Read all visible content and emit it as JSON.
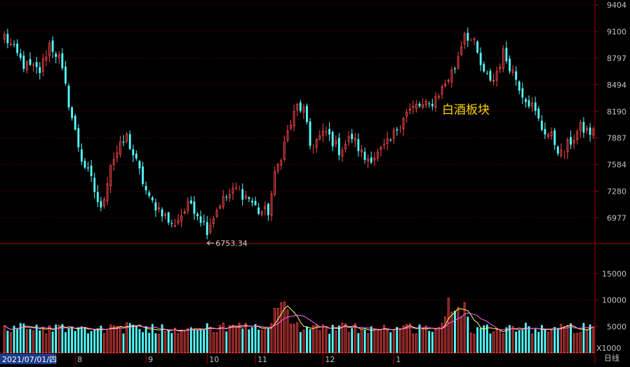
{
  "chart_data": {
    "type": "candlestick",
    "title": "白酒板块",
    "period_label": "日线",
    "price_axis": {
      "ticks": [
        9404,
        9100,
        8797,
        8494,
        8190,
        7887,
        7584,
        7280,
        6977
      ],
      "min": 6700,
      "max": 9420
    },
    "volume_axis": {
      "ticks": [
        15000,
        10000,
        5000
      ],
      "unit": "X1000",
      "min": 0,
      "max": 20000
    },
    "annotations": [
      {
        "label": "6753.34",
        "category_index": 63,
        "value": 6753.34
      }
    ],
    "x_axis": {
      "start_label": "2021/07/01/四",
      "month_labels": [
        {
          "label": "8",
          "category_index": 22
        },
        {
          "label": "9",
          "category_index": 44
        },
        {
          "label": "10",
          "category_index": 63
        },
        {
          "label": "11",
          "category_index": 78
        },
        {
          "label": "12",
          "category_index": 99
        },
        {
          "label": "1",
          "category_index": 121
        }
      ]
    },
    "key_closes": [
      [
        0,
        9050
      ],
      [
        6,
        8720
      ],
      [
        11,
        8650
      ],
      [
        14,
        8960
      ],
      [
        17,
        8800
      ],
      [
        22,
        7950
      ],
      [
        24,
        7650
      ],
      [
        27,
        7400
      ],
      [
        30,
        7050
      ],
      [
        33,
        7600
      ],
      [
        38,
        7900
      ],
      [
        41,
        7600
      ],
      [
        45,
        7180
      ],
      [
        49,
        7050
      ],
      [
        52,
        6880
      ],
      [
        58,
        7150
      ],
      [
        63,
        6850
      ],
      [
        67,
        7150
      ],
      [
        72,
        7300
      ],
      [
        76,
        7200
      ],
      [
        79,
        7050
      ],
      [
        82,
        7050
      ],
      [
        84,
        7450
      ],
      [
        88,
        7950
      ],
      [
        91,
        8250
      ],
      [
        93,
        8200
      ],
      [
        95,
        7800
      ],
      [
        100,
        7950
      ],
      [
        104,
        7750
      ],
      [
        108,
        7900
      ],
      [
        112,
        7650
      ],
      [
        116,
        7700
      ],
      [
        120,
        7850
      ],
      [
        124,
        8150
      ],
      [
        128,
        8250
      ],
      [
        132,
        8250
      ],
      [
        136,
        8450
      ],
      [
        140,
        8700
      ],
      [
        143,
        9100
      ],
      [
        146,
        8950
      ],
      [
        149,
        8600
      ],
      [
        152,
        8550
      ],
      [
        155,
        8850
      ],
      [
        158,
        8650
      ],
      [
        161,
        8400
      ],
      [
        164,
        8250
      ],
      [
        167,
        8000
      ],
      [
        170,
        7900
      ],
      [
        173,
        7700
      ],
      [
        176,
        7850
      ],
      [
        179,
        8000
      ],
      [
        182,
        7950
      ]
    ]
  }
}
